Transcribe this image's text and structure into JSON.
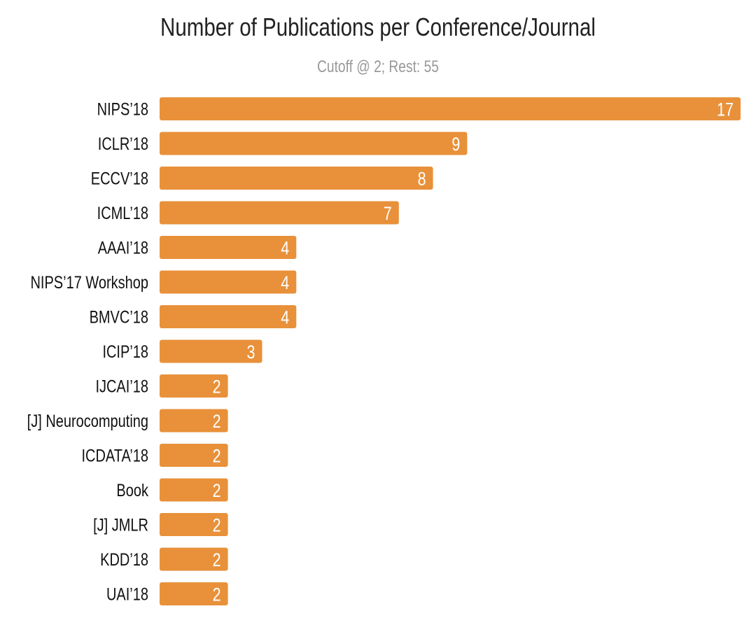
{
  "chart_data": {
    "type": "bar",
    "orientation": "horizontal",
    "title": "Number of Publications per Conference/Journal",
    "subtitle": "Cutoff @ 2; Rest: 55",
    "categories": [
      "NIPS’18",
      "ICLR’18",
      "ECCV’18",
      "ICML’18",
      "AAAI’18",
      "NIPS’17 Workshop",
      "BMVC’18",
      "ICIP’18",
      "IJCAI’18",
      "[J] Neurocomputing",
      "ICDATA’18",
      "Book",
      "[J] JMLR",
      "KDD’18",
      "UAI’18"
    ],
    "values": [
      17,
      9,
      8,
      7,
      4,
      4,
      4,
      3,
      2,
      2,
      2,
      2,
      2,
      2,
      2
    ],
    "xlim": [
      0,
      17
    ],
    "grid": false,
    "bar_color": "#e8913a",
    "value_label_color": "#ffffff"
  }
}
